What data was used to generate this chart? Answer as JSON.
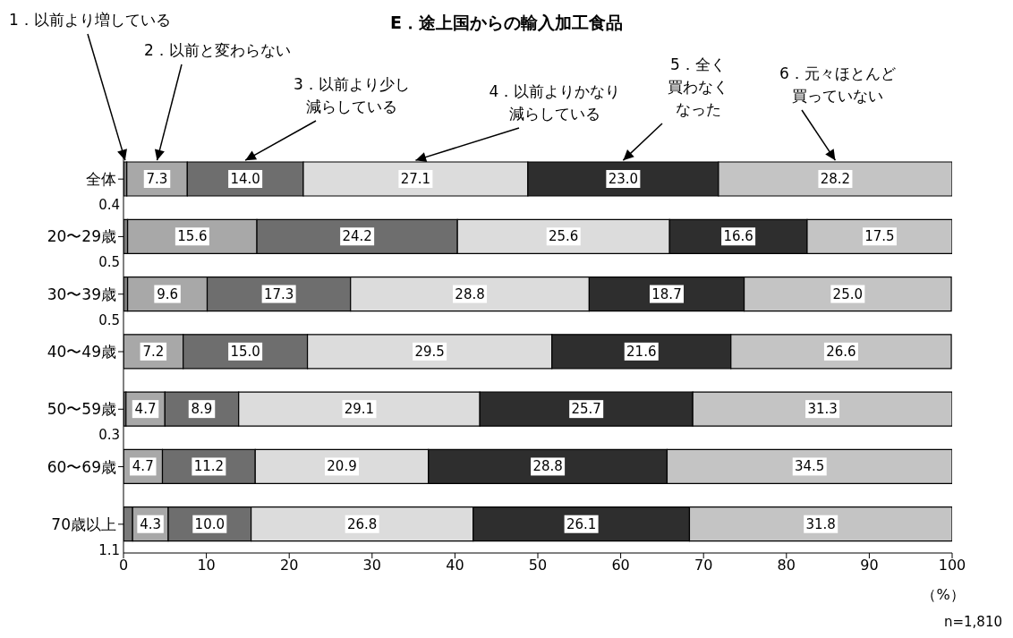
{
  "chart_data": {
    "type": "bar",
    "orientation": "horizontal",
    "stacked": true,
    "title": "E．途上国からの輸入加工食品",
    "xlabel": "（%）",
    "annotations": [
      "n=1,810"
    ],
    "categories": [
      "全体",
      "20〜29歳",
      "30〜39歳",
      "40〜49歳",
      "50〜59歳",
      "60〜69歳",
      "70歳以上"
    ],
    "series": [
      {
        "name": "1．以前より増している",
        "color": "#7a7a7a",
        "values": [
          0.4,
          0.5,
          0.5,
          null,
          0.3,
          null,
          1.1
        ],
        "value_labels": [
          "0.4",
          "0.5",
          "0.5",
          null,
          "0.3",
          null,
          "1.1"
        ]
      },
      {
        "name": "2．以前と変わらない",
        "color": "#a8a8a8",
        "values": [
          7.3,
          15.6,
          9.6,
          7.2,
          4.7,
          4.7,
          4.3
        ],
        "value_labels": [
          "7.3",
          "15.6",
          "9.6",
          "7.2",
          "4.7",
          "4.7",
          "4.3"
        ]
      },
      {
        "name": "3．以前より少し減らしている",
        "color": "#6e6e6e",
        "values": [
          14.0,
          24.2,
          17.3,
          15.0,
          8.9,
          11.2,
          10.0
        ],
        "value_labels": [
          "14.0",
          "24.2",
          "17.3",
          "15.0",
          "8.9",
          "11.2",
          "10.0"
        ]
      },
      {
        "name": "4．以前よりかなり減らしている",
        "color": "#dcdcdc",
        "values": [
          27.1,
          25.6,
          28.8,
          29.5,
          29.1,
          20.9,
          26.8
        ],
        "value_labels": [
          "27.1",
          "25.6",
          "28.8",
          "29.5",
          "29.1",
          "20.9",
          "26.8"
        ]
      },
      {
        "name": "5．全く買わなくなった",
        "color": "#2e2e2e",
        "values": [
          23.0,
          16.6,
          18.7,
          21.6,
          25.7,
          28.8,
          26.1
        ],
        "value_labels": [
          "23.0",
          "16.6",
          "18.7",
          "21.6",
          "25.7",
          "28.8",
          "26.1"
        ]
      },
      {
        "name": "6．元々ほとんど買っていない",
        "color": "#c4c4c4",
        "values": [
          28.2,
          17.5,
          25.0,
          26.6,
          31.3,
          34.5,
          31.8
        ],
        "value_labels": [
          "28.2",
          "17.5",
          "25.0",
          "26.6",
          "31.3",
          "34.5",
          "31.8"
        ]
      }
    ],
    "xlim": [
      0,
      100
    ],
    "xticks": [
      0,
      10,
      20,
      30,
      40,
      50,
      60,
      70,
      80,
      90,
      100
    ],
    "grid": false,
    "legend": "top"
  }
}
